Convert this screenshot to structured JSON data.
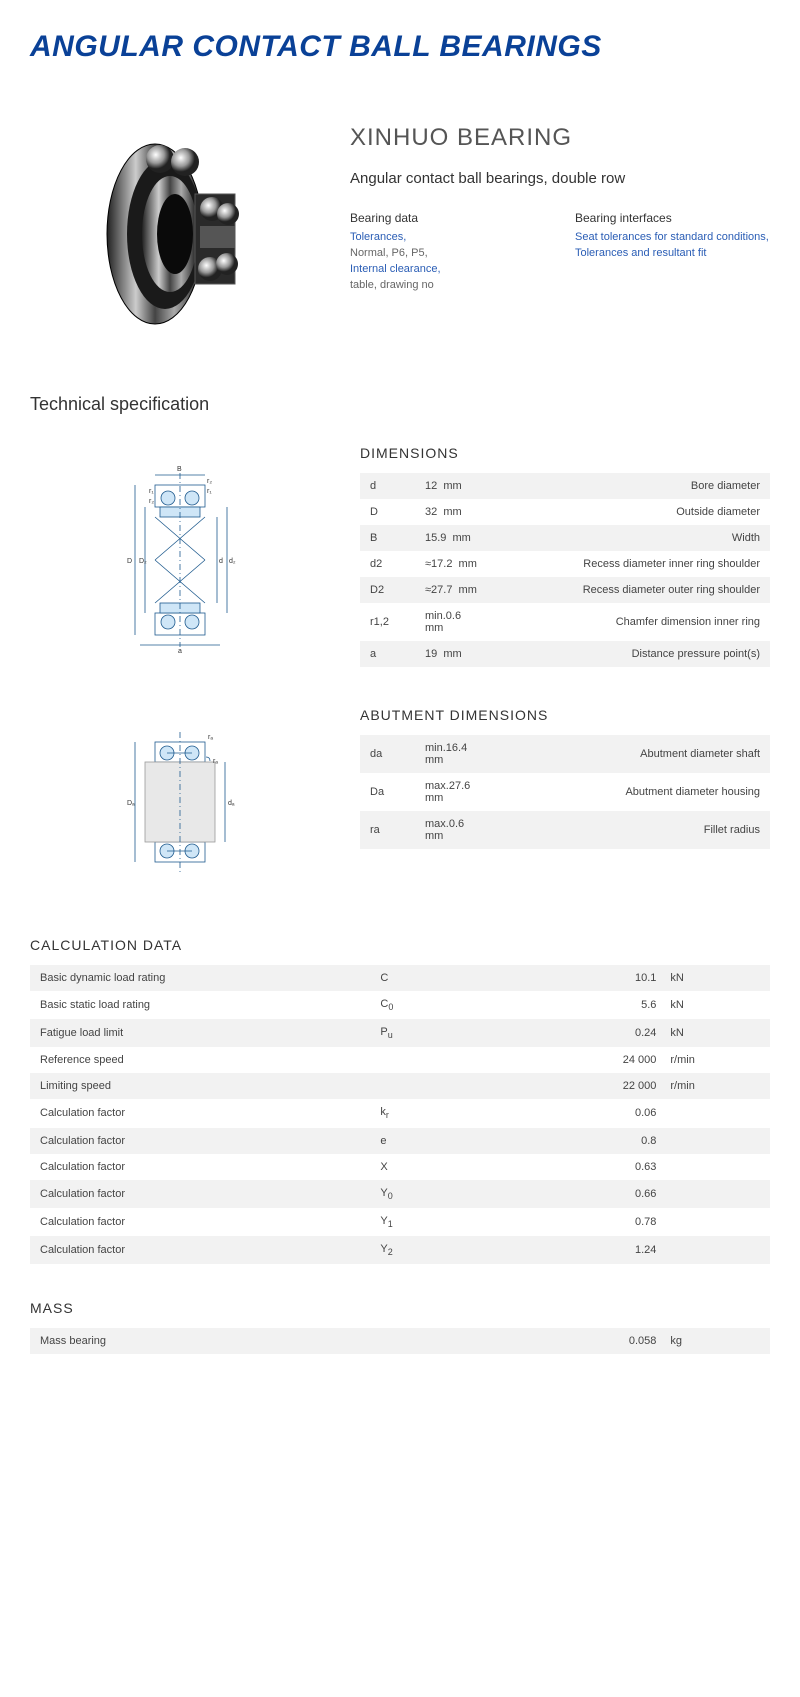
{
  "title": "ANGULAR CONTACT BALL BEARINGS",
  "brand": "XINHUO BEARING",
  "subtitle": "Angular contact ball bearings, double row",
  "colors": {
    "heading": "#0a4197",
    "link": "#2a5db5",
    "row_odd": "#f2f2f2",
    "row_even": "#ffffff",
    "text": "#333333",
    "diagram_fill": "#cfe6f7",
    "diagram_stroke": "#1e5a8e"
  },
  "bearing_data": {
    "heading": "Bearing data",
    "link1": "Tolerances,",
    "text1": "Normal, P6, P5,",
    "link2": "Internal clearance,",
    "text2": "table, drawing no"
  },
  "bearing_interfaces": {
    "heading": "Bearing interfaces",
    "link1": "Seat tolerances for standard conditions,",
    "link2": "Tolerances and resultant fit"
  },
  "tech_spec_heading": "Technical specification",
  "dimensions": {
    "title": "DIMENSIONS",
    "rows": [
      {
        "sym": "d",
        "val": "12",
        "unit": "mm",
        "desc": "Bore diameter"
      },
      {
        "sym": "D",
        "val": "32",
        "unit": "mm",
        "desc": "Outside diameter"
      },
      {
        "sym": "B",
        "val": "15.9",
        "unit": "mm",
        "desc": "Width"
      },
      {
        "sym": "d2",
        "val": "≈17.2",
        "unit": "mm",
        "desc": "Recess diameter inner ring shoulder"
      },
      {
        "sym": "D2",
        "val": "≈27.7",
        "unit": "mm",
        "desc": "Recess diameter outer ring shoulder"
      },
      {
        "sym": "r1,2",
        "val": "min.0.6",
        "unit": "mm",
        "desc": "Chamfer dimension inner ring"
      },
      {
        "sym": "a",
        "val": "19",
        "unit": "mm",
        "desc": "Distance pressure point(s)"
      }
    ]
  },
  "abutment": {
    "title": "ABUTMENT DIMENSIONS",
    "rows": [
      {
        "sym": "da",
        "val": "min.16.4",
        "unit": "mm",
        "desc": "Abutment diameter shaft"
      },
      {
        "sym": "Da",
        "val": "max.27.6",
        "unit": "mm",
        "desc": "Abutment diameter housing"
      },
      {
        "sym": "ra",
        "val": "max.0.6",
        "unit": "mm",
        "desc": "Fillet radius"
      }
    ]
  },
  "calculation": {
    "title": "CALCULATION DATA",
    "rows": [
      {
        "label": "Basic dynamic load rating",
        "sym": "C",
        "sub": "",
        "val": "10.1",
        "unit": "kN"
      },
      {
        "label": "Basic static load rating",
        "sym": "C",
        "sub": "0",
        "val": "5.6",
        "unit": "kN"
      },
      {
        "label": "Fatigue load limit",
        "sym": "P",
        "sub": "u",
        "val": "0.24",
        "unit": "kN"
      },
      {
        "label": "Reference speed",
        "sym": "",
        "sub": "",
        "val": "24 000",
        "unit": "r/min"
      },
      {
        "label": "Limiting speed",
        "sym": "",
        "sub": "",
        "val": "22 000",
        "unit": "r/min"
      },
      {
        "label": "Calculation factor",
        "sym": "k",
        "sub": "r",
        "val": "0.06",
        "unit": ""
      },
      {
        "label": "Calculation factor",
        "sym": "e",
        "sub": "",
        "val": "0.8",
        "unit": ""
      },
      {
        "label": "Calculation factor",
        "sym": "X",
        "sub": "",
        "val": "0.63",
        "unit": ""
      },
      {
        "label": "Calculation factor",
        "sym": "Y",
        "sub": "0",
        "val": "0.66",
        "unit": ""
      },
      {
        "label": "Calculation factor",
        "sym": "Y",
        "sub": "1",
        "val": "0.78",
        "unit": ""
      },
      {
        "label": "Calculation factor",
        "sym": "Y",
        "sub": "2",
        "val": "1.24",
        "unit": ""
      }
    ]
  },
  "mass": {
    "title": "MASS",
    "rows": [
      {
        "label": "Mass bearing",
        "sym": "",
        "sub": "",
        "val": "0.058",
        "unit": "kg"
      }
    ]
  }
}
